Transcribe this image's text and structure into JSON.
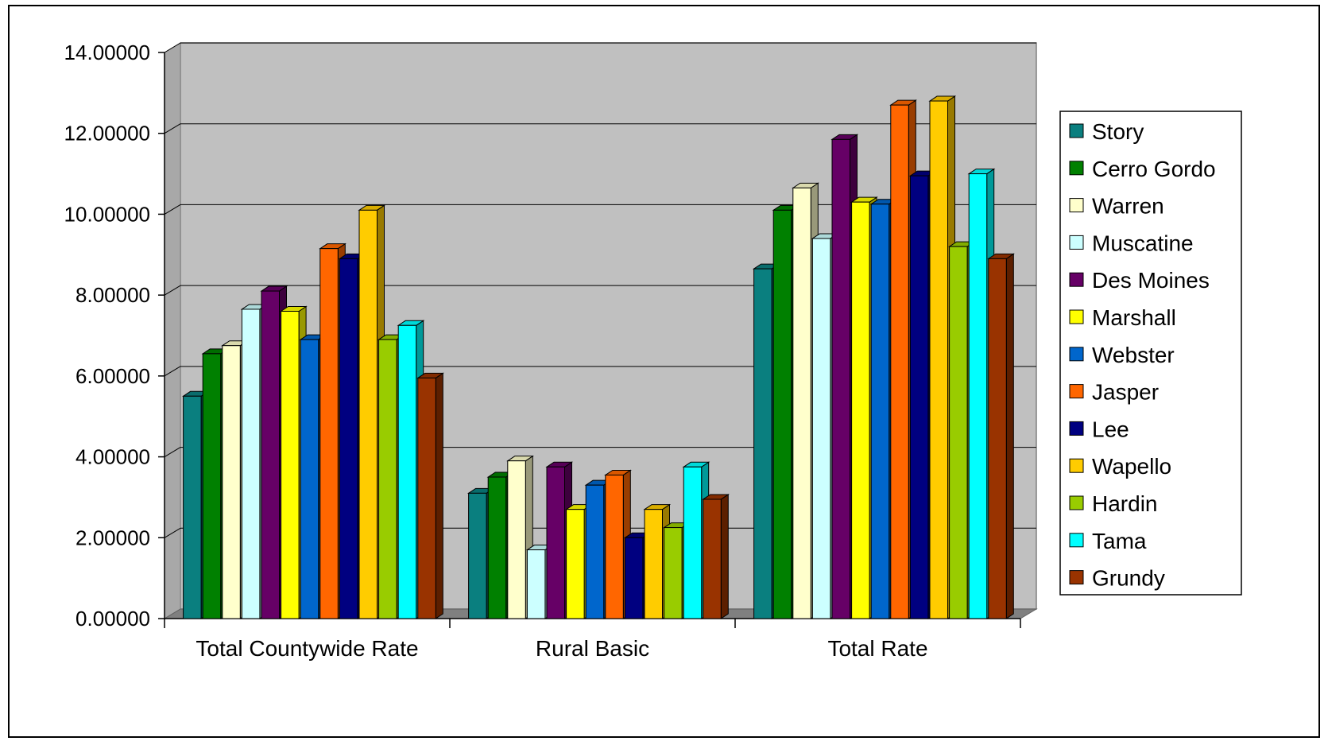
{
  "chart_data": {
    "type": "bar",
    "title": "",
    "xlabel": "",
    "ylabel": "",
    "ylim": [
      0,
      14
    ],
    "yticks": [
      "0.00000",
      "2.00000",
      "4.00000",
      "6.00000",
      "8.00000",
      "10.00000",
      "12.00000",
      "14.00000"
    ],
    "grid": true,
    "legend_position": "right",
    "categories": [
      "Total Countywide Rate",
      "Rural Basic",
      "Total Rate"
    ],
    "series": [
      {
        "name": "Story",
        "color": "#0a7f7f",
        "values": [
          5.5,
          3.1,
          8.65
        ]
      },
      {
        "name": "Cerro Gordo",
        "color": "#008000",
        "values": [
          6.55,
          3.5,
          10.1
        ]
      },
      {
        "name": "Warren",
        "color": "#ffffcc",
        "values": [
          6.75,
          3.9,
          10.65
        ]
      },
      {
        "name": "Muscatine",
        "color": "#ccffff",
        "values": [
          7.65,
          1.7,
          9.4
        ]
      },
      {
        "name": "Des Moines",
        "color": "#660066",
        "values": [
          8.1,
          3.75,
          11.85
        ]
      },
      {
        "name": "Marshall",
        "color": "#ffff00",
        "values": [
          7.6,
          2.7,
          10.3
        ]
      },
      {
        "name": "Webster",
        "color": "#0066cc",
        "values": [
          6.9,
          3.3,
          10.25
        ]
      },
      {
        "name": "Jasper",
        "color": "#ff6600",
        "values": [
          9.15,
          3.55,
          12.7
        ]
      },
      {
        "name": "Lee",
        "color": "#000080",
        "values": [
          8.9,
          2.0,
          10.95
        ]
      },
      {
        "name": "Wapello",
        "color": "#ffcc00",
        "values": [
          10.1,
          2.7,
          12.8
        ]
      },
      {
        "name": "Hardin",
        "color": "#99cc00",
        "values": [
          6.9,
          2.25,
          9.2
        ]
      },
      {
        "name": "Tama",
        "color": "#00ffff",
        "values": [
          7.25,
          3.75,
          11.0
        ]
      },
      {
        "name": "Grundy",
        "color": "#993300",
        "values": [
          5.95,
          2.95,
          8.9
        ]
      }
    ]
  },
  "style": {
    "plot_background": "#c0c0c0",
    "floor_color": "#808080",
    "gridline_color": "#000000"
  }
}
